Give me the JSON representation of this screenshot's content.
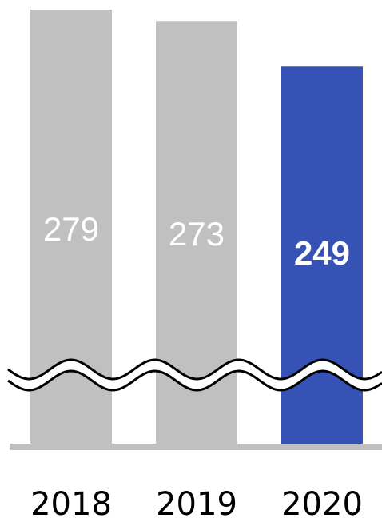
{
  "chart_data": {
    "type": "bar",
    "categories": [
      "2018",
      "2019",
      "2020"
    ],
    "values": [
      279,
      273,
      249
    ],
    "data_labels": [
      "279",
      "273",
      "249"
    ],
    "highlight_index": 2,
    "axis_break": true,
    "title": "",
    "xlabel": "",
    "ylabel": "",
    "colors": {
      "bar_default": "#c0c0c0",
      "bar_highlight": "#3552b4",
      "label_default": "#ffffff",
      "label_highlight": "#ffffff",
      "baseline": "#c0c0c0",
      "break_fill": "#ffffff",
      "break_stroke": "#000000"
    }
  }
}
